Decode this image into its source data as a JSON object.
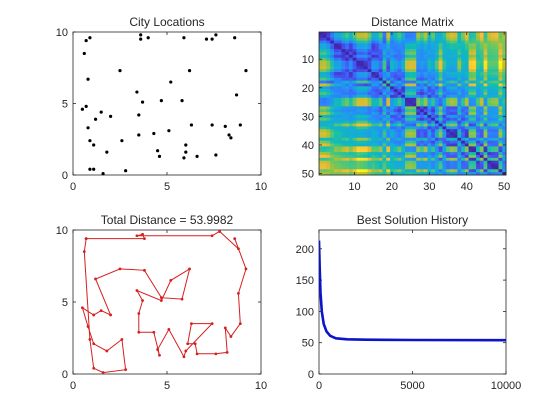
{
  "figure": {
    "background": "#ffffff",
    "axis_color": "#262626"
  },
  "chart_data": [
    {
      "id": "cities",
      "type": "scatter",
      "title": "City Locations",
      "xlim": [
        0,
        10
      ],
      "ylim": [
        0,
        10
      ],
      "xticks": [
        0,
        5,
        10
      ],
      "yticks": [
        0,
        5,
        10
      ],
      "grid": false,
      "marker_color": "#000000",
      "points": [
        [
          0.7,
          9.4
        ],
        [
          0.9,
          9.6
        ],
        [
          0.6,
          8.5
        ],
        [
          0.8,
          6.7
        ],
        [
          0.5,
          4.6
        ],
        [
          0.7,
          4.8
        ],
        [
          0.8,
          3.3
        ],
        [
          0.9,
          2.4
        ],
        [
          1.2,
          3.9
        ],
        [
          1.1,
          2.1
        ],
        [
          0.9,
          0.4
        ],
        [
          1.1,
          0.4
        ],
        [
          1.6,
          0.1
        ],
        [
          1.8,
          1.6
        ],
        [
          1.5,
          4.4
        ],
        [
          2.0,
          4.1
        ],
        [
          2.6,
          2.4
        ],
        [
          2.5,
          7.3
        ],
        [
          2.8,
          0.3
        ],
        [
          3.4,
          5.8
        ],
        [
          3.5,
          4.2
        ],
        [
          3.5,
          2.8
        ],
        [
          3.7,
          5.1
        ],
        [
          3.6,
          9.5
        ],
        [
          3.6,
          9.8
        ],
        [
          4.0,
          9.6
        ],
        [
          4.5,
          1.7
        ],
        [
          4.3,
          2.9
        ],
        [
          4.6,
          1.3
        ],
        [
          4.7,
          5.2
        ],
        [
          5.1,
          3.1
        ],
        [
          5.2,
          6.5
        ],
        [
          5.9,
          9.6
        ],
        [
          5.8,
          5.2
        ],
        [
          6.0,
          2.1
        ],
        [
          5.9,
          1.2
        ],
        [
          6.0,
          1.6
        ],
        [
          6.2,
          7.3
        ],
        [
          6.3,
          3.5
        ],
        [
          6.6,
          1.3
        ],
        [
          7.1,
          9.5
        ],
        [
          7.4,
          9.5
        ],
        [
          7.4,
          3.5
        ],
        [
          7.6,
          1.4
        ],
        [
          7.6,
          9.8
        ],
        [
          8.1,
          3.4
        ],
        [
          8.3,
          2.8
        ],
        [
          8.4,
          2.6
        ],
        [
          8.6,
          9.6
        ],
        [
          8.7,
          5.6
        ],
        [
          8.9,
          3.5
        ],
        [
          9.2,
          7.3
        ]
      ]
    },
    {
      "id": "matrix",
      "type": "heatmap",
      "title": "Distance Matrix",
      "xlim": [
        0.5,
        50.5
      ],
      "ylim": [
        0.5,
        50.5
      ],
      "xticks": [
        10,
        20,
        30,
        40,
        50
      ],
      "yticks": [
        10,
        20,
        30,
        40,
        50
      ],
      "size": 50,
      "colormap": "parula",
      "y_reversed": true
    },
    {
      "id": "route",
      "type": "line",
      "title": "Total Distance = 53.9982",
      "xlim": [
        0,
        10
      ],
      "ylim": [
        0,
        10
      ],
      "xticks": [
        0,
        5,
        10
      ],
      "yticks": [
        0,
        5,
        10
      ],
      "grid": false,
      "line_color": "#d62020",
      "points": [
        [
          0.7,
          9.4
        ],
        [
          3.8,
          9.4
        ],
        [
          3.7,
          9.7
        ],
        [
          3.4,
          9.6
        ],
        [
          7.4,
          9.6
        ],
        [
          7.8,
          9.9
        ],
        [
          8.8,
          8.7
        ],
        [
          8.6,
          9.4
        ],
        [
          9.2,
          7.3
        ],
        [
          8.8,
          5.6
        ],
        [
          8.9,
          3.5
        ],
        [
          8.4,
          2.6
        ],
        [
          8.1,
          3.2
        ],
        [
          8.2,
          1.5
        ],
        [
          7.6,
          1.4
        ],
        [
          6.6,
          1.4
        ],
        [
          6.5,
          2.1
        ],
        [
          6.1,
          2.1
        ],
        [
          6.3,
          3.5
        ],
        [
          7.4,
          3.5
        ],
        [
          6.0,
          1.6
        ],
        [
          5.9,
          1.2
        ],
        [
          5.1,
          3.1
        ],
        [
          4.5,
          1.7
        ],
        [
          4.6,
          1.3
        ],
        [
          4.3,
          2.9
        ],
        [
          3.5,
          2.9
        ],
        [
          3.5,
          4.2
        ],
        [
          3.7,
          5.1
        ],
        [
          3.4,
          5.8
        ],
        [
          4.7,
          5.1
        ],
        [
          5.2,
          6.5
        ],
        [
          6.2,
          7.3
        ],
        [
          5.8,
          5.2
        ],
        [
          4.7,
          5.3
        ],
        [
          3.8,
          7.2
        ],
        [
          2.5,
          7.3
        ],
        [
          1.2,
          6.6
        ],
        [
          2.0,
          4.1
        ],
        [
          1.5,
          4.4
        ],
        [
          1.1,
          4.1
        ],
        [
          0.5,
          4.6
        ],
        [
          0.8,
          3.3
        ],
        [
          1.1,
          2.1
        ],
        [
          1.8,
          1.6
        ],
        [
          2.6,
          2.4
        ],
        [
          2.8,
          0.3
        ],
        [
          1.6,
          0.1
        ],
        [
          1.1,
          0.4
        ],
        [
          0.9,
          2.4
        ],
        [
          0.6,
          8.5
        ],
        [
          0.7,
          9.4
        ]
      ]
    },
    {
      "id": "history",
      "type": "line",
      "title": "Best Solution History",
      "xlim": [
        0,
        10000
      ],
      "ylim": [
        0,
        230
      ],
      "xticks": [
        0,
        5000,
        10000
      ],
      "yticks": [
        0,
        50,
        100,
        150,
        200
      ],
      "grid": false,
      "line_color": "#0b14c8",
      "points": [
        [
          0,
          213
        ],
        [
          40,
          170
        ],
        [
          80,
          130
        ],
        [
          150,
          100
        ],
        [
          250,
          80
        ],
        [
          400,
          68
        ],
        [
          600,
          61
        ],
        [
          900,
          57
        ],
        [
          1500,
          55.5
        ],
        [
          2500,
          54.8
        ],
        [
          5000,
          54.3
        ],
        [
          10000,
          54
        ]
      ]
    }
  ]
}
